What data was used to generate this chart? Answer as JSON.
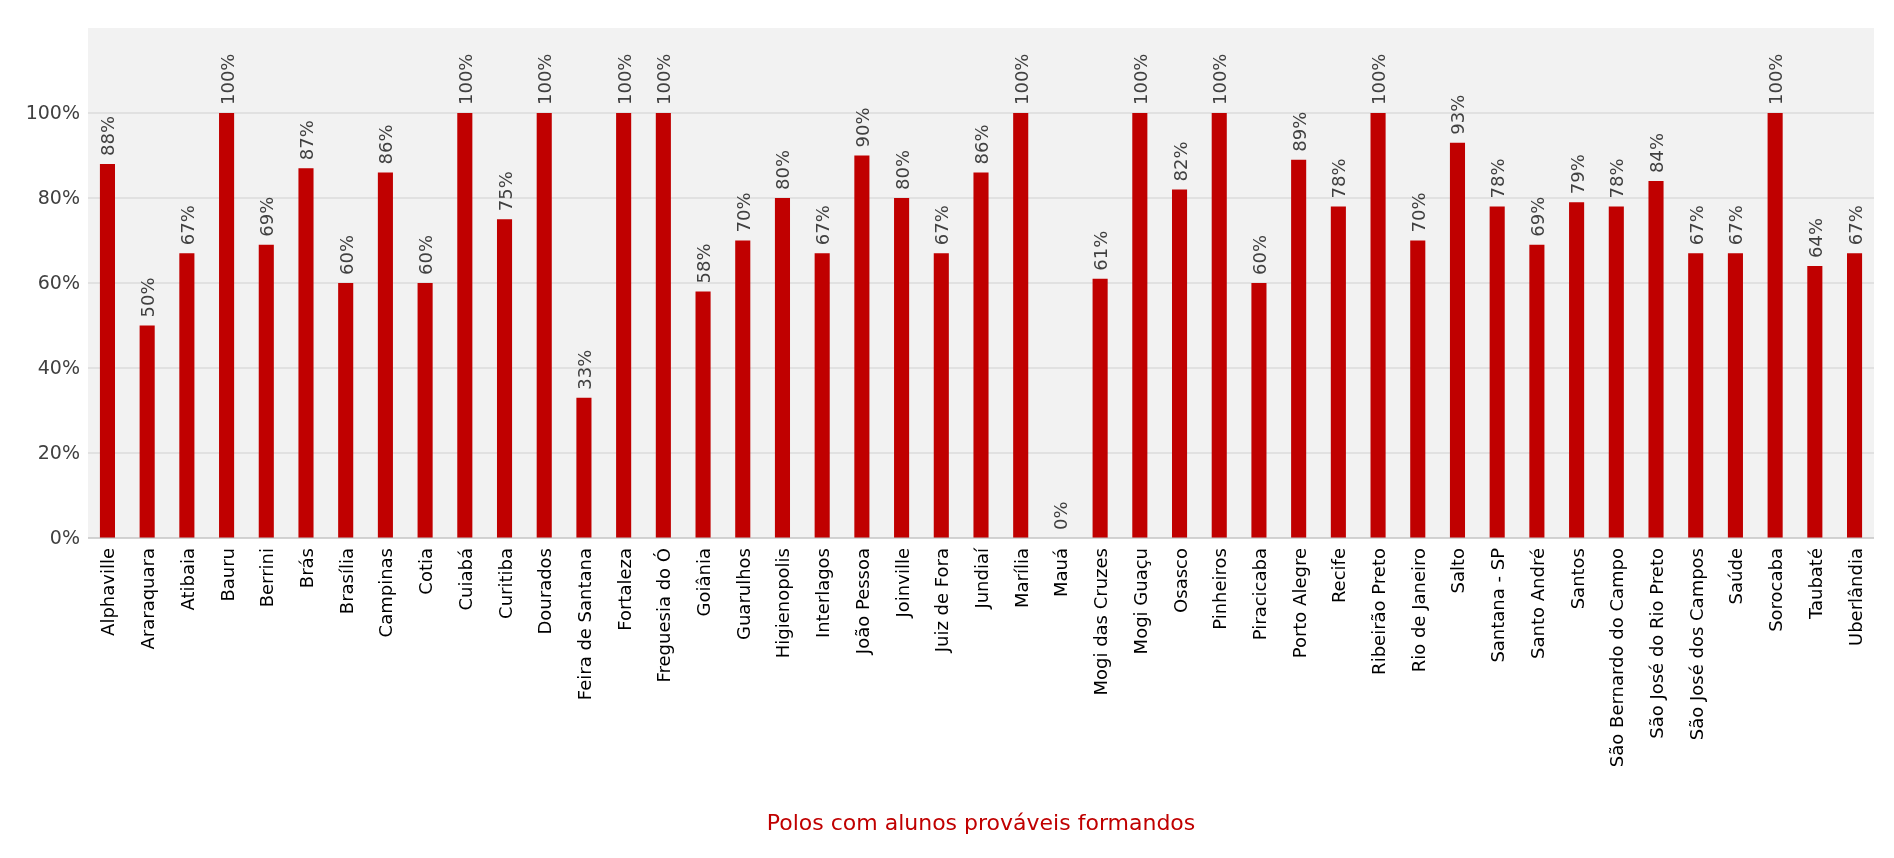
{
  "chart_data": {
    "type": "bar",
    "xlabel": "Polos com alunos prováveis formandos",
    "categories": [
      "Alphaville",
      "Araraquara",
      "Atibaia",
      "Bauru",
      "Berrini",
      "Brás",
      "Brasília",
      "Campinas",
      "Cotia",
      "Cuiabá",
      "Curitiba",
      "Dourados",
      "Feira de Santana",
      "Fortaleza",
      "Freguesia do Ó",
      "Goiânia",
      "Guarulhos",
      "Higienopolis",
      "Interlagos",
      "João Pessoa",
      "Joinville",
      "Juiz de Fora",
      "Jundiaí",
      "Marília",
      "Mauá",
      "Mogi das Cruzes",
      "Mogi Guaçu",
      "Osasco",
      "Pinheiros",
      "Piracicaba",
      "Porto Alegre",
      "Recife",
      "Ribeirão Preto",
      "Rio de Janeiro",
      "Salto",
      "Santana - SP",
      "Santo André",
      "Santos",
      "São Bernardo do Campo",
      "São José do Rio Preto",
      "São José dos Campos",
      "Saúde",
      "Sorocaba",
      "Taubaté",
      "Uberlândia"
    ],
    "values": [
      88,
      50,
      67,
      100,
      69,
      87,
      60,
      86,
      60,
      100,
      75,
      100,
      33,
      100,
      100,
      58,
      70,
      80,
      67,
      90,
      80,
      67,
      86,
      100,
      0,
      61,
      100,
      82,
      100,
      60,
      89,
      78,
      100,
      70,
      93,
      78,
      69,
      79,
      78,
      84,
      67,
      67,
      100,
      64,
      67
    ],
    "value_labels": [
      "88%",
      "50%",
      "67%",
      "100%",
      "69%",
      "87%",
      "60%",
      "86%",
      "60%",
      "100%",
      "75%",
      "100%",
      "33%",
      "100%",
      "100%",
      "58%",
      "70%",
      "80%",
      "67%",
      "90%",
      "80%",
      "67%",
      "86%",
      "100%",
      "0%",
      "61%",
      "100%",
      "82%",
      "100%",
      "60%",
      "89%",
      "78%",
      "100%",
      "70%",
      "93%",
      "78%",
      "69%",
      "79%",
      "78%",
      "84%",
      "67%",
      "67%",
      "100%",
      "64%",
      "67%"
    ],
    "color": "#c00000",
    "ylim": [
      0,
      120
    ],
    "yticks": [
      {
        "value": 0,
        "label": "0%"
      },
      {
        "value": 20,
        "label": "20%"
      },
      {
        "value": 40,
        "label": "40%"
      },
      {
        "value": 60,
        "label": "60%"
      },
      {
        "value": 80,
        "label": "80%"
      },
      {
        "value": 100,
        "label": "100%"
      }
    ],
    "grid": "y"
  }
}
